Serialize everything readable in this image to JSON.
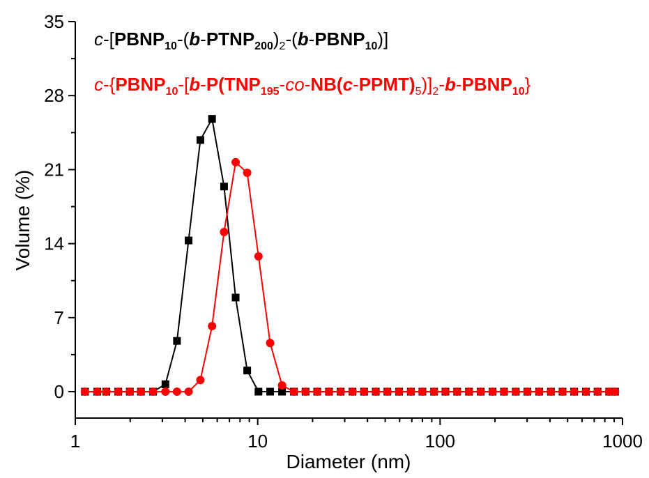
{
  "chart_data": {
    "type": "line",
    "xlabel": "Diameter (nm)",
    "ylabel": "Volume (%)",
    "xscale": "log",
    "xlim": [
      1,
      1000
    ],
    "ylim": [
      -2.5,
      35
    ],
    "xticks": [
      1,
      10,
      100,
      1000
    ],
    "xtick_labels": [
      "1",
      "10",
      "100",
      "1000"
    ],
    "yticks": [
      0,
      7,
      14,
      21,
      28,
      35
    ],
    "ytick_labels": [
      "0",
      "7",
      "14",
      "21",
      "28",
      "35"
    ],
    "grid": false,
    "legend_position": "top-left",
    "x": [
      1.13,
      1.32,
      1.48,
      1.72,
      1.99,
      2.29,
      2.67,
      3.12,
      3.61,
      4.18,
      4.85,
      5.62,
      6.54,
      7.57,
      8.76,
      10.1,
      11.7,
      13.6,
      15.8,
      18.3,
      21.2,
      24.6,
      28.5,
      33.1,
      38.3,
      44.4,
      51.4,
      59.6,
      69.1,
      80.0,
      92.7,
      107,
      124,
      144,
      167,
      194,
      224,
      260,
      301,
      349,
      405,
      469,
      543,
      630,
      730,
      845,
      910
    ],
    "series": [
      {
        "color": "#000000",
        "marker": "square",
        "values": [
          0,
          0,
          0,
          0,
          0,
          0,
          0,
          0.7,
          4.8,
          14.3,
          23.8,
          25.8,
          19.4,
          8.9,
          2.0,
          0,
          0,
          0,
          0,
          0,
          0,
          0,
          0,
          0,
          0,
          0,
          0,
          0,
          0,
          0,
          0,
          0,
          0,
          0,
          0,
          0,
          0,
          0,
          0,
          0,
          0,
          0,
          0,
          0,
          0,
          0,
          0
        ]
      },
      {
        "color": "#ff0000",
        "marker": "circle",
        "values": [
          0,
          0,
          0,
          0,
          0,
          0,
          0,
          0,
          0,
          0,
          1.1,
          6.2,
          15.1,
          21.7,
          20.7,
          12.8,
          4.6,
          0.6,
          0,
          0,
          0,
          0,
          0,
          0,
          0,
          0,
          0,
          0,
          0,
          0,
          0,
          0,
          0,
          0,
          0,
          0,
          0,
          0,
          0,
          0,
          0,
          0,
          0,
          0,
          0,
          0,
          0
        ]
      }
    ]
  },
  "legend": {
    "entry1": {
      "c": "c",
      "d1": "-[",
      "pbnp": "PBNP",
      "s10a": "10",
      "d2": "-(",
      "b": "b",
      "d3": "-",
      "ptnp": "PTNP",
      "s200": "200",
      "d4": ")",
      "s2": "2",
      "d5": "-(",
      "b2": "b",
      "d6": "-",
      "pbnp2": "PBNP",
      "s10b": "10",
      "d7": ")]"
    },
    "entry2": {
      "c": "c",
      "d1": "-{",
      "pbnp": "PBNP",
      "s10a": "10",
      "d2": "-[",
      "b": "b",
      "d3": "-",
      "p": "P(",
      "tnp": "TNP",
      "s195": "195",
      "d4": "-",
      "co": "co",
      "d5": "-",
      "nb": "NB(",
      "c2": "c",
      "d6": "-",
      "ppmt": "PPMT)",
      "s5": "5",
      "d7": ")]",
      "s2": "2",
      "d8": "-",
      "b2": "b",
      "d9": "-",
      "pbnp2": "PBNP",
      "s10b": "10",
      "d10": "}"
    }
  }
}
